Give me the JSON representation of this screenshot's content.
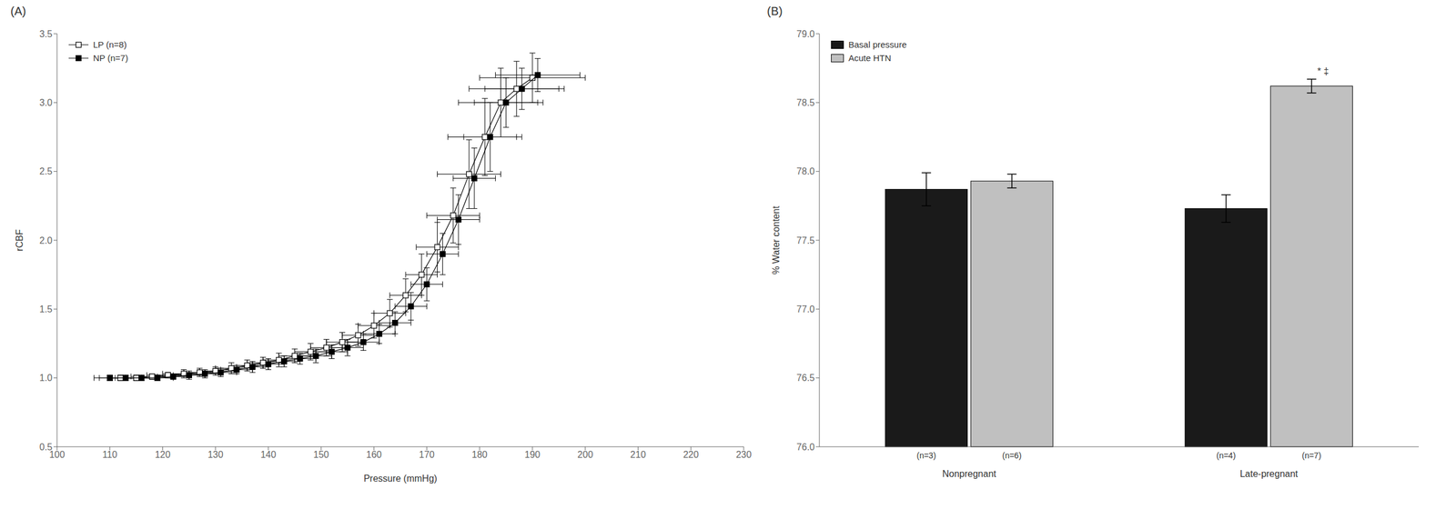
{
  "chart_data": [
    {
      "type": "line",
      "title": "(A)",
      "xlabel": "Pressure (mmHg)",
      "ylabel": "rCBF",
      "xlim": [
        100,
        230
      ],
      "ylim": [
        0.5,
        3.5
      ],
      "xticks": [
        100,
        110,
        120,
        130,
        140,
        150,
        160,
        170,
        180,
        190,
        200,
        210,
        220,
        230
      ],
      "yticks": [
        0.5,
        {
          "value": 1.0,
          "label": "1.0"
        },
        1.5,
        {
          "value": 2.0,
          "label": "2.0"
        },
        2.5,
        {
          "value": 3.0,
          "label": "3.0"
        },
        3.5
      ],
      "legend": "upper left",
      "series": [
        {
          "name": "LP (n=8)",
          "color": "#000000",
          "marker": "open_square",
          "x": [
            112,
            115,
            118,
            121,
            124,
            127,
            130,
            133,
            136,
            139,
            142,
            145,
            148,
            151,
            154,
            157,
            160,
            163,
            166,
            169,
            172,
            175,
            178,
            181,
            184,
            187,
            190
          ],
          "values": [
            1.0,
            1.0,
            1.01,
            1.02,
            1.03,
            1.04,
            1.05,
            1.07,
            1.09,
            1.11,
            1.13,
            1.16,
            1.19,
            1.22,
            1.26,
            1.31,
            1.38,
            1.47,
            1.6,
            1.75,
            1.95,
            2.18,
            2.48,
            2.75,
            3.0,
            3.1,
            3.18
          ],
          "x_errors": [
            4,
            4,
            4,
            4,
            4,
            3,
            3,
            3,
            3,
            3,
            3,
            3,
            3,
            3,
            3,
            3,
            3,
            3,
            3,
            3,
            4,
            5,
            6,
            7,
            8,
            9,
            10
          ],
          "y_errors": [
            0.02,
            0.02,
            0.02,
            0.02,
            0.03,
            0.03,
            0.03,
            0.04,
            0.04,
            0.04,
            0.05,
            0.05,
            0.06,
            0.06,
            0.07,
            0.08,
            0.09,
            0.1,
            0.12,
            0.15,
            0.18,
            0.2,
            0.25,
            0.28,
            0.25,
            0.2,
            0.18
          ]
        },
        {
          "name": "NP (n=7)",
          "color": "#000000",
          "marker": "square",
          "x": [
            110,
            113,
            116,
            119,
            122,
            125,
            128,
            131,
            134,
            137,
            140,
            143,
            146,
            149,
            152,
            155,
            158,
            161,
            164,
            167,
            170,
            173,
            176,
            179,
            182,
            185,
            188,
            191
          ],
          "values": [
            1.0,
            1.0,
            1.0,
            1.0,
            1.01,
            1.02,
            1.03,
            1.04,
            1.06,
            1.08,
            1.1,
            1.12,
            1.14,
            1.16,
            1.19,
            1.22,
            1.26,
            1.32,
            1.4,
            1.52,
            1.68,
            1.9,
            2.15,
            2.45,
            2.75,
            3.0,
            3.1,
            3.2
          ],
          "x_errors": [
            3,
            3,
            3,
            3,
            3,
            3,
            3,
            3,
            3,
            3,
            3,
            3,
            3,
            3,
            3,
            3,
            3,
            3,
            3,
            3,
            3,
            3,
            4,
            4,
            5,
            6,
            7,
            8
          ],
          "y_errors": [
            0.02,
            0.02,
            0.02,
            0.02,
            0.02,
            0.03,
            0.03,
            0.03,
            0.03,
            0.04,
            0.04,
            0.04,
            0.04,
            0.05,
            0.05,
            0.06,
            0.06,
            0.07,
            0.08,
            0.1,
            0.12,
            0.15,
            0.18,
            0.22,
            0.25,
            0.18,
            0.15,
            0.12
          ]
        }
      ]
    },
    {
      "type": "bar",
      "title": "(B)",
      "ylabel": "% Water content",
      "ylim": [
        76.0,
        79.0
      ],
      "yticks": [
        {
          "value": 76.0,
          "label": "76.0"
        },
        76.5,
        {
          "value": 77.0,
          "label": "77.0"
        },
        77.5,
        {
          "value": 78.0,
          "label": "78.0"
        },
        78.5,
        {
          "value": 79.0,
          "label": "79.0"
        }
      ],
      "categories": [
        "Nonpregnant",
        "Late-pregnant"
      ],
      "legend": "upper left",
      "series": [
        {
          "name": "Basal pressure",
          "color": "#1a1a1a",
          "values": [
            77.87,
            77.73
          ],
          "errors": [
            0.12,
            0.1
          ],
          "n_labels": [
            "(n=3)",
            "(n=4)"
          ]
        },
        {
          "name": "Acute HTN",
          "color": "#c0c0c0",
          "values": [
            77.93,
            78.62
          ],
          "errors": [
            0.05,
            0.05
          ],
          "n_labels": [
            "(n=6)",
            "(n=7)"
          ]
        }
      ],
      "annotations": [
        {
          "text": "* ‡",
          "category": "Late-pregnant",
          "series": "Acute HTN"
        }
      ]
    }
  ]
}
